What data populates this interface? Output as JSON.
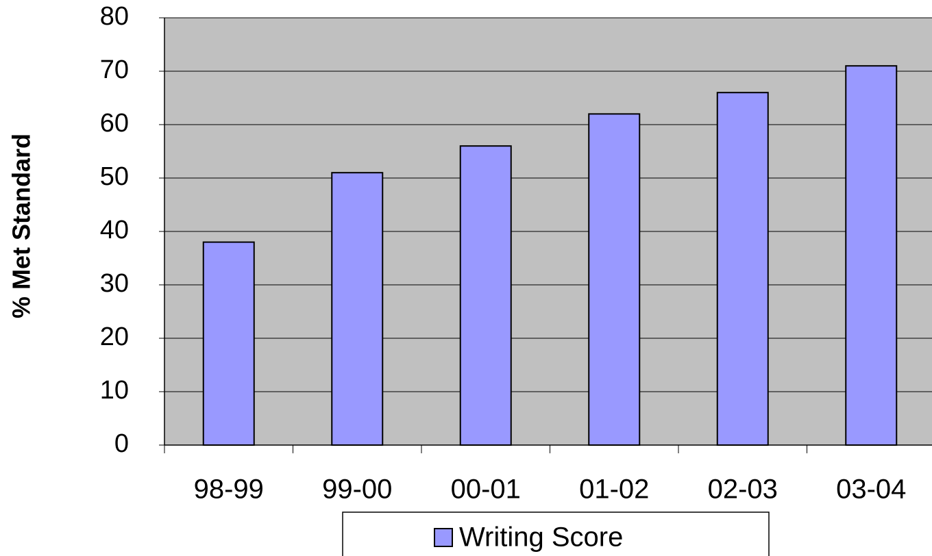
{
  "chart_data": {
    "type": "bar",
    "y_label": "% Met Standard",
    "categories": [
      "98-99",
      "99-00",
      "00-01",
      "01-02",
      "02-03",
      "03-04"
    ],
    "series": [
      {
        "name": "Writing Score",
        "color": "#9999ff",
        "values": [
          38,
          51,
          56,
          62,
          66,
          71
        ]
      }
    ],
    "ylim": [
      0,
      80
    ],
    "yticks": [
      0,
      10,
      20,
      30,
      40,
      50,
      60,
      70,
      80
    ],
    "grid": true,
    "legend": "bottom"
  }
}
